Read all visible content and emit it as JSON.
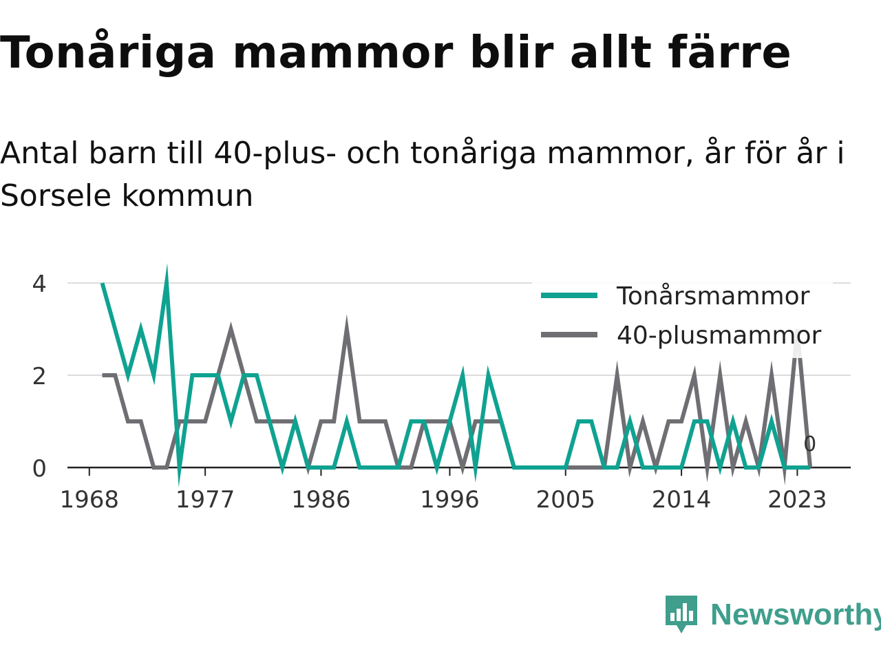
{
  "header": {
    "title": "Tonåriga mammor blir allt färre",
    "subtitle": "Antal barn till 40-plus- och tonåriga mammor, år för år i Sorsele kommun"
  },
  "brand": {
    "name": "Newsworthy",
    "color": "#3f9e8c",
    "icon": "bar-chart-speech-bubble-icon"
  },
  "chart_data": {
    "type": "line",
    "x": [
      1969,
      1970,
      1971,
      1972,
      1973,
      1974,
      1975,
      1976,
      1977,
      1978,
      1979,
      1980,
      1981,
      1982,
      1983,
      1984,
      1985,
      1986,
      1987,
      1988,
      1989,
      1990,
      1991,
      1992,
      1993,
      1994,
      1995,
      1996,
      1997,
      1998,
      1999,
      2000,
      2001,
      2002,
      2003,
      2004,
      2005,
      2006,
      2007,
      2008,
      2009,
      2010,
      2011,
      2012,
      2013,
      2014,
      2015,
      2016,
      2017,
      2018,
      2019,
      2020,
      2021,
      2022,
      2023,
      2024
    ],
    "series": [
      {
        "name": "Tonårsmammor",
        "color": "#0fa291",
        "values": [
          4,
          3,
          2,
          3,
          2,
          4,
          0,
          2,
          2,
          2,
          1,
          2,
          2,
          1,
          0,
          1,
          0,
          0,
          0,
          1,
          0,
          0,
          0,
          0,
          1,
          1,
          0,
          1,
          2,
          0,
          2,
          1,
          0,
          0,
          0,
          0,
          0,
          1,
          1,
          0,
          0,
          1,
          0,
          0,
          0,
          0,
          1,
          1,
          0,
          1,
          0,
          0,
          1,
          0,
          0,
          0
        ]
      },
      {
        "name": "40-plusmammor",
        "color": "#6e6e73",
        "values": [
          2,
          2,
          1,
          1,
          0,
          0,
          1,
          1,
          1,
          2,
          3,
          2,
          1,
          1,
          1,
          1,
          0,
          1,
          1,
          3,
          1,
          1,
          1,
          0,
          0,
          1,
          1,
          1,
          0,
          1,
          1,
          1,
          0,
          0,
          0,
          0,
          0,
          0,
          0,
          0,
          2,
          0,
          1,
          0,
          1,
          1,
          2,
          0,
          2,
          0,
          1,
          0,
          2,
          0,
          3,
          0
        ]
      }
    ],
    "last_value_label": "0",
    "x_ticks": [
      "1968",
      "1977",
      "1986",
      "1996",
      "2005",
      "2014",
      "2023"
    ],
    "y_ticks": [
      "0",
      "2",
      "4"
    ],
    "ylim": [
      0,
      4
    ],
    "grid": true,
    "legend_position": "top-right"
  }
}
